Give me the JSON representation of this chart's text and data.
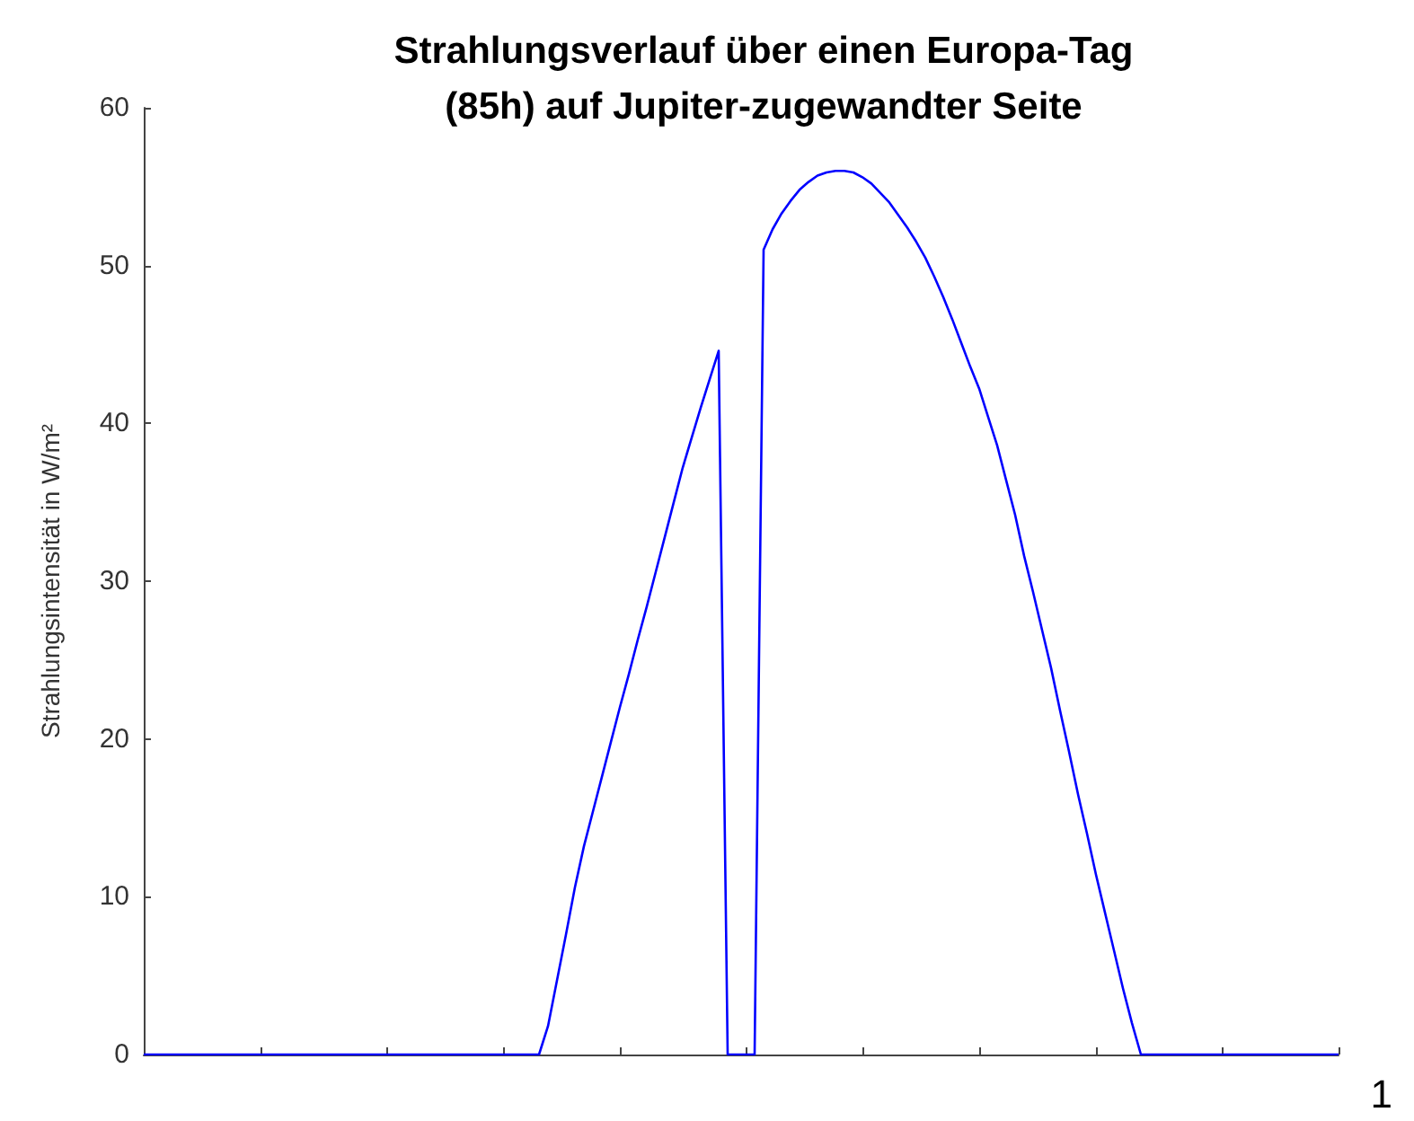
{
  "chart_data": {
    "type": "line",
    "title": "Strahlungsverlauf über einen Europa-Tag\n(85h) auf Jupiter-zugewandter Seite",
    "ylabel": "Strahlungsintensität in W/m²",
    "annotations": [
      "1"
    ],
    "categories": [
      null,
      null,
      null,
      null,
      null,
      null,
      null,
      null,
      null,
      null,
      null,
      null,
      null,
      null,
      null,
      null,
      null,
      null,
      null,
      null,
      null,
      null,
      null,
      null,
      null,
      null,
      null,
      null,
      null,
      null,
      null,
      null,
      null,
      null,
      null,
      null,
      null,
      null,
      null,
      null,
      null,
      null,
      null,
      null,
      null,
      null,
      null,
      null,
      null,
      null,
      null,
      null,
      null,
      null,
      null,
      null,
      null,
      null,
      null,
      null,
      null,
      null,
      null,
      null,
      null,
      null,
      null,
      null,
      null,
      null,
      null,
      null,
      null,
      null,
      null,
      null,
      null,
      null,
      null,
      null,
      null,
      null,
      null,
      null,
      null,
      null,
      null,
      null,
      null,
      null,
      null,
      null,
      null,
      null,
      null,
      null,
      null,
      null,
      null,
      null,
      null,
      null,
      null,
      null,
      null,
      null,
      null,
      null,
      null,
      null,
      null,
      null,
      null,
      null,
      null,
      null,
      null,
      null,
      null,
      null,
      null,
      null,
      null,
      null,
      null,
      null,
      null,
      null,
      null,
      null,
      null,
      null,
      null,
      null
    ],
    "series": [
      {
        "color": "#0000ff",
        "values": [
          0,
          0,
          0,
          0,
          0,
          0,
          0,
          0,
          0,
          0,
          0,
          0,
          0,
          0,
          0,
          0,
          0,
          0,
          0,
          0,
          0,
          0,
          0,
          0,
          0,
          0,
          0,
          0,
          0,
          0,
          0,
          0,
          0,
          0,
          0,
          0,
          0,
          0,
          0,
          0,
          0,
          0,
          0,
          0,
          0,
          1.8,
          4.7,
          7.6,
          10.6,
          13.2,
          15.4,
          17.6,
          19.8,
          22,
          24.1,
          26.3,
          28.4,
          30.6,
          32.8,
          35,
          37.2,
          39.1,
          41,
          42.8,
          44.6,
          0,
          0,
          0,
          0,
          51,
          52.3,
          53.3,
          54.1,
          54.8,
          55.3,
          55.7,
          55.9,
          56,
          56,
          55.9,
          55.6,
          55.2,
          54.6,
          54,
          53.2,
          52.4,
          51.5,
          50.5,
          49.3,
          48,
          46.6,
          45.1,
          43.6,
          42.2,
          40.4,
          38.6,
          36.4,
          34.2,
          31.6,
          29.3,
          26.9,
          24.5,
          21.8,
          19.2,
          16.5,
          14,
          11.4,
          9,
          6.6,
          4.2,
          2,
          0,
          0,
          0,
          0,
          0,
          0,
          0,
          0,
          0,
          0,
          0,
          0,
          0,
          0,
          0,
          0,
          0,
          0,
          0,
          0,
          0,
          0,
          0
        ]
      }
    ],
    "ylim": [
      0,
      60
    ],
    "yticks": [
      0,
      10,
      20,
      30,
      40,
      50,
      60
    ],
    "grid": false,
    "marker": "none",
    "line_style": "solid"
  }
}
